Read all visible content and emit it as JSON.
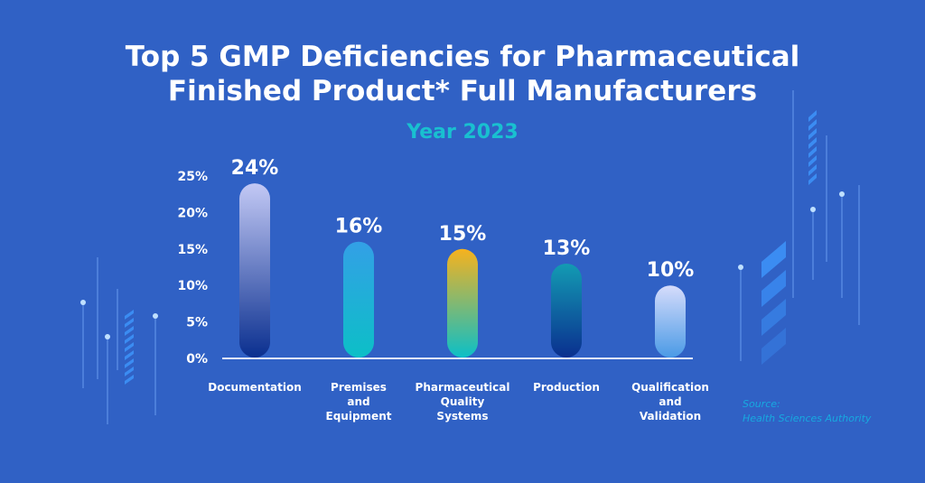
{
  "title_line1": "Top 5 GMP Deficiencies for Pharmaceutical",
  "title_line2": "Finished Product* Full Manufacturers",
  "subtitle": "Year 2023",
  "source_label": "Source:",
  "source_name": "Health Sciences Authority",
  "chart_data": {
    "type": "bar",
    "title": "Top 5 GMP Deficiencies for Pharmaceutical Finished Product* Full Manufacturers",
    "subtitle": "Year 2023",
    "categories": [
      [
        "Documentation"
      ],
      [
        "Premises",
        "and",
        "Equipment"
      ],
      [
        "Pharmaceutical",
        "Quality",
        "Systems"
      ],
      [
        "Production"
      ],
      [
        "Qualification",
        "and",
        "Validation"
      ]
    ],
    "values": [
      24,
      16,
      15,
      13,
      10
    ],
    "data_labels": [
      "24%",
      "16%",
      "15%",
      "13%",
      "10%"
    ],
    "yticks": [
      "0%",
      "5%",
      "10%",
      "15%",
      "20%",
      "25%"
    ],
    "ylim": [
      0,
      25
    ],
    "grid": false,
    "bar_gradients": [
      [
        "#c3c9f5",
        "#0a2f8f"
      ],
      [
        "#33a0e6",
        "#0cbfc7"
      ],
      [
        "#f6b21e",
        "#0cbfc7"
      ],
      [
        "#139bb3",
        "#0a2f8f"
      ],
      [
        "#d6dcfb",
        "#4a9ae6"
      ]
    ]
  }
}
